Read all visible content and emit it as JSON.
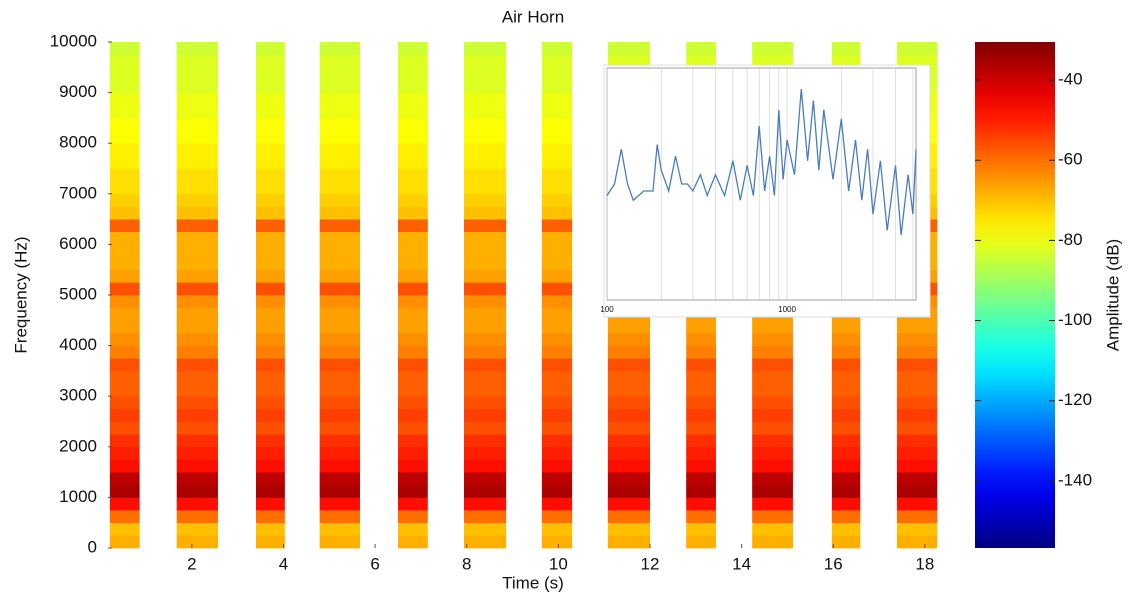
{
  "chart_data": [
    {
      "type": "spectrogram",
      "title": "Air Horn",
      "x_label": "Time (s)",
      "y_label": "Frequency (Hz)",
      "colorbar_label": "Amplitude (dB)",
      "colormap": "jet",
      "xlim": [
        0.17,
        18.33
      ],
      "xticks": [
        2,
        4,
        6,
        8,
        10,
        12,
        14,
        16,
        18
      ],
      "ylim": [
        0,
        10000
      ],
      "yticks": [
        0,
        1000,
        2000,
        3000,
        4000,
        5000,
        6000,
        7000,
        8000,
        9000,
        10000
      ],
      "clim": [
        -156.75,
        -30.5
      ],
      "cticks": [
        -40,
        -60,
        -80,
        -100,
        -120,
        -140
      ],
      "segments": [
        [
          0.21,
          0.86
        ],
        [
          1.67,
          2.57
        ],
        [
          3.4,
          4.03
        ],
        [
          4.79,
          5.67
        ],
        [
          6.5,
          7.15
        ],
        [
          7.94,
          8.86
        ],
        [
          9.64,
          10.3
        ],
        [
          11.08,
          12.0
        ],
        [
          12.79,
          13.44
        ],
        [
          14.23,
          15.12
        ],
        [
          15.97,
          16.59
        ],
        [
          17.39,
          18.27
        ]
      ],
      "freq_bins": [
        0,
        250,
        500,
        750,
        1000,
        1250,
        1500,
        1750,
        2000,
        2250,
        2500,
        2750,
        3000,
        3250,
        3500,
        3750,
        4000,
        4250,
        4500,
        4750,
        5000,
        5250,
        5500,
        5750,
        6000,
        6250,
        6500,
        6750,
        7000,
        7250,
        7500,
        7750,
        8000,
        8250,
        8500,
        8750,
        9000,
        9250,
        9500,
        9750,
        10000
      ],
      "amplitude": [
        -68,
        -70,
        -60,
        -48,
        -36,
        -38,
        -48,
        -50,
        -52,
        -56,
        -54,
        -56,
        -58,
        -58,
        -56,
        -62,
        -64,
        -66,
        -66,
        -64,
        -56,
        -66,
        -68,
        -68,
        -68,
        -58,
        -70,
        -72,
        -74,
        -74,
        -76,
        -76,
        -78,
        -78,
        -80,
        -80,
        -82,
        -82,
        -82,
        -84
      ]
    },
    {
      "type": "line",
      "log_x": true,
      "color": "#4a7ebb",
      "xlim": [
        100,
        5200
      ],
      "xticks": [
        100,
        1000
      ],
      "xgrid": [
        200,
        300,
        400,
        500,
        600,
        700,
        800,
        900,
        2000,
        3000,
        4000,
        5000
      ],
      "ylim": [
        0,
        100
      ],
      "x": [
        100,
        110,
        120,
        130,
        140,
        160,
        180,
        190,
        200,
        220,
        240,
        260,
        280,
        300,
        330,
        360,
        400,
        450,
        500,
        550,
        600,
        650,
        700,
        750,
        800,
        850,
        900,
        950,
        1000,
        1100,
        1200,
        1300,
        1400,
        1500,
        1600,
        1800,
        2000,
        2200,
        2400,
        2600,
        2800,
        3000,
        3300,
        3600,
        4000,
        4300,
        4700,
        5000,
        5200
      ],
      "values": [
        45,
        50,
        65,
        50,
        43,
        47,
        47,
        67,
        56,
        47,
        62,
        50,
        50,
        47,
        54,
        45,
        54,
        45,
        60,
        43,
        58,
        45,
        75,
        47,
        62,
        45,
        82,
        52,
        69,
        54,
        91,
        60,
        86,
        56,
        82,
        52,
        78,
        47,
        69,
        43,
        65,
        37,
        60,
        30,
        58,
        28,
        54,
        37,
        65
      ]
    }
  ]
}
